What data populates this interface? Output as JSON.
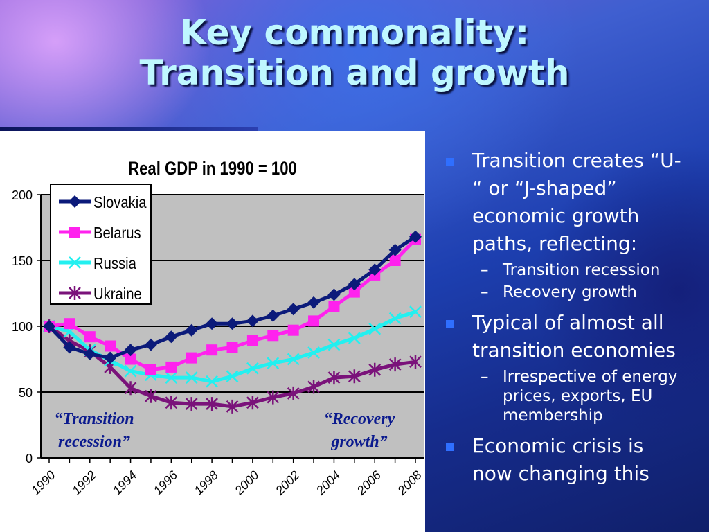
{
  "slide": {
    "title_line1": "Key commonality:",
    "title_line2": "Transition and growth"
  },
  "bullets": [
    {
      "text": "Transition creates “U-“ or “J-shaped” economic growth paths, reflecting:",
      "lines": [
        "Transition creates “U-",
        "“ or “J-shaped”",
        "economic growth",
        "paths, reflecting:"
      ],
      "sub": [
        "Transition recession",
        "Recovery growth"
      ]
    },
    {
      "text": "Typical of almost all transition economies",
      "lines": [
        "Typical of almost all",
        "transition economies"
      ],
      "sub_lines": [
        [
          "Irrespective of energy",
          "prices, exports, EU",
          "membership"
        ]
      ]
    },
    {
      "text": "Economic crisis is now changing this",
      "lines": [
        "Economic crisis is",
        "now changing this"
      ]
    }
  ],
  "annotations": {
    "left_line1": "“Transition",
    "left_line2": "recession”",
    "right_line1": "“Recovery",
    "right_line2": "growth”"
  },
  "chart_data": {
    "type": "line",
    "title": "Real GDP in 1990 = 100",
    "xlabel": "",
    "ylabel": "",
    "x": [
      1990,
      1991,
      1992,
      1993,
      1994,
      1995,
      1996,
      1997,
      1998,
      1999,
      2000,
      2001,
      2002,
      2003,
      2004,
      2005,
      2006,
      2007,
      2008
    ],
    "x_tick_labels": [
      "1990",
      "1992",
      "1994",
      "1996",
      "1998",
      "2000",
      "2002",
      "2004",
      "2006",
      "2008"
    ],
    "ylim": [
      0,
      200
    ],
    "y_ticks": [
      0,
      50,
      100,
      150,
      200
    ],
    "grid": true,
    "legend_position": "top-left",
    "plot_background": "#c0c0c0",
    "series": [
      {
        "name": "Slovakia",
        "color": "#0b1a7a",
        "marker": "diamond",
        "values": [
          100,
          84,
          79,
          76,
          82,
          86,
          92,
          97,
          102,
          102,
          104,
          108,
          113,
          118,
          124,
          132,
          143,
          158,
          168
        ]
      },
      {
        "name": "Belarus",
        "color": "#ff22ee",
        "marker": "square",
        "values": [
          100,
          102,
          92,
          85,
          75,
          67,
          69,
          76,
          82,
          84,
          89,
          93,
          97,
          104,
          115,
          126,
          139,
          150,
          166
        ]
      },
      {
        "name": "Russia",
        "color": "#22f0f0",
        "marker": "x",
        "values": [
          100,
          96,
          82,
          74,
          66,
          63,
          61,
          61,
          58,
          62,
          68,
          72,
          75,
          80,
          86,
          91,
          98,
          106,
          111
        ]
      },
      {
        "name": "Ukraine",
        "color": "#7a127a",
        "marker": "star",
        "values": [
          100,
          89,
          81,
          69,
          53,
          47,
          42,
          41,
          41,
          39,
          42,
          46,
          49,
          54,
          61,
          62,
          67,
          71,
          73
        ]
      }
    ]
  }
}
